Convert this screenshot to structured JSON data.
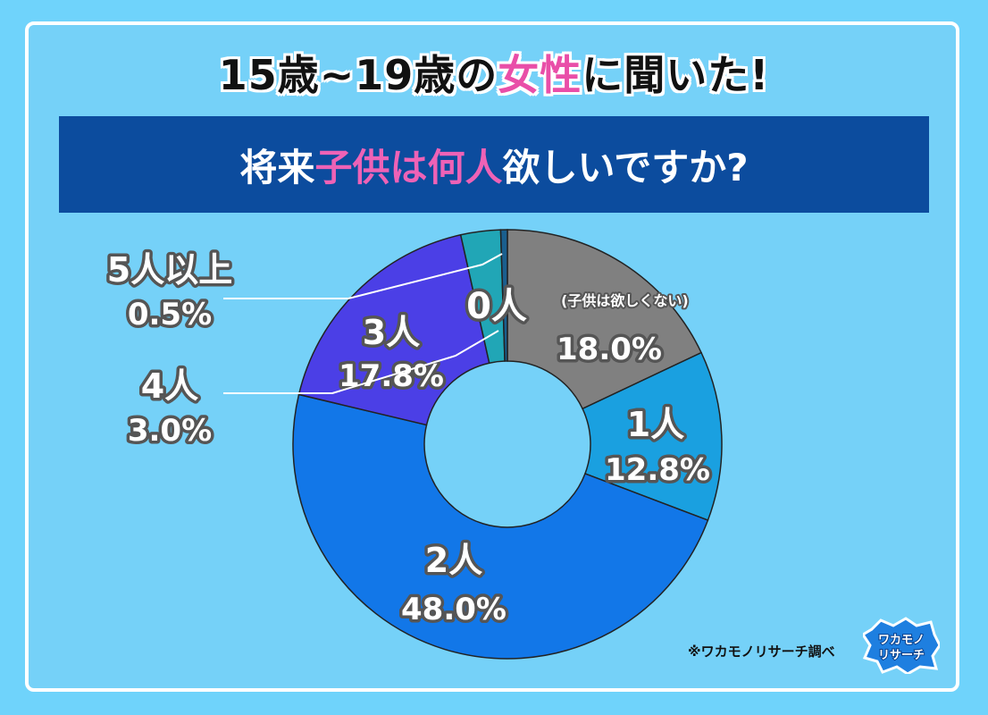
{
  "title": {
    "part1": "15歳~19歳の",
    "highlight": "女性",
    "part2": "に聞いた!"
  },
  "question": {
    "part1": "将来",
    "highlight": "子供は何人",
    "part2": "欲しいですか?"
  },
  "chart_data": {
    "type": "pie",
    "title": "将来子供は何人欲しいですか?",
    "categories": [
      "0人",
      "1人",
      "2人",
      "3人",
      "4人",
      "5人以上"
    ],
    "note": "(子供は欲しくない)",
    "values": [
      18.0,
      12.8,
      48.0,
      17.8,
      3.0,
      0.5
    ],
    "labels": [
      "18.0%",
      "12.8%",
      "48.0%",
      "17.8%",
      "3.0%",
      "0.5%"
    ],
    "colors": [
      "#808080",
      "#1aa0e0",
      "#1277e8",
      "#4b3fe6",
      "#21a6b6",
      "#1a5f8e"
    ],
    "hole": "donut"
  },
  "source": "※ワカモノリサーチ調べ",
  "logo_text": [
    "ワカモノ",
    "リサーチ"
  ],
  "colors": {
    "background": "#6fd3fb",
    "banner": "#0c4c9e",
    "accent_pink": "#e94ea8"
  }
}
